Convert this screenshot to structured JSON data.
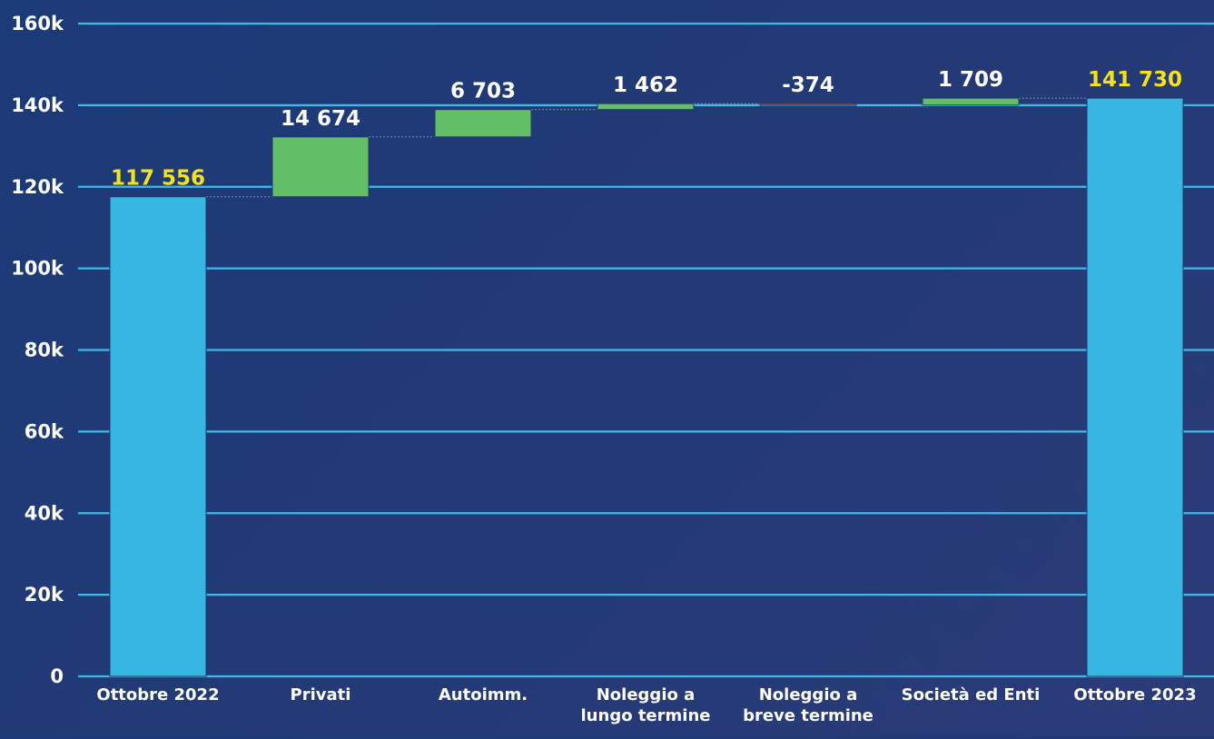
{
  "chart_data": {
    "type": "bar",
    "subtype": "waterfall",
    "categories": [
      [
        "Ottobre 2022"
      ],
      [
        "Privati"
      ],
      [
        "Autoimm."
      ],
      [
        "Noleggio a",
        "lungo termine"
      ],
      [
        "Noleggio a",
        "breve termine"
      ],
      [
        "Società ed Enti"
      ],
      [
        "Ottobre 2023"
      ]
    ],
    "values": [
      117556,
      14674,
      6703,
      1462,
      -374,
      1709,
      141730
    ],
    "bar_kinds": [
      "total",
      "delta",
      "delta",
      "delta",
      "delta",
      "delta",
      "total"
    ],
    "value_labels": [
      "117 556",
      "14 674",
      "6 703",
      "1 462",
      "-374",
      "1 709",
      "141 730"
    ],
    "y_ticks": [
      "0",
      "20k",
      "40k",
      "60k",
      "80k",
      "100k",
      "120k",
      "140k",
      "160k"
    ],
    "ylim": [
      0,
      160000
    ],
    "grid": true,
    "colors": {
      "total": "#35b6e3",
      "increase": "#63bf66",
      "decrease": "#d64a4a",
      "gridline": "#41b9e8",
      "axis_text": "#ffffff",
      "total_label": "#f4e21c",
      "delta_label": "#ffffff"
    }
  }
}
